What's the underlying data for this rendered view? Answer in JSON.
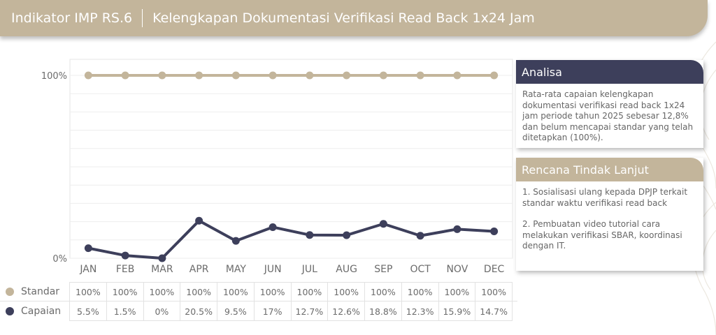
{
  "header": {
    "indicator": "Indikator IMP RS.6",
    "title": "Kelengkapan Dokumentasi Verifikasi Read Back 1x24 Jam"
  },
  "colors": {
    "standar": "#c3b59b",
    "capaian": "#3d3f5b",
    "header_bg": "#c3b59b",
    "analisa_bg": "#3d3f5b",
    "rtl_bg": "#c3b59b"
  },
  "chart_data": {
    "type": "line",
    "categories": [
      "JAN",
      "FEB",
      "MAR",
      "APR",
      "MAY",
      "JUN",
      "JUL",
      "AUG",
      "SEP",
      "OCT",
      "NOV",
      "DEC"
    ],
    "series": [
      {
        "name": "Standar",
        "values": [
          100,
          100,
          100,
          100,
          100,
          100,
          100,
          100,
          100,
          100,
          100,
          100
        ],
        "labels": [
          "100%",
          "100%",
          "100%",
          "100%",
          "100%",
          "100%",
          "100%",
          "100%",
          "100%",
          "100%",
          "100%",
          "100%"
        ]
      },
      {
        "name": "Capaian",
        "values": [
          5.5,
          1.5,
          0,
          20.5,
          9.5,
          17,
          12.7,
          12.6,
          18.8,
          12.3,
          15.9,
          14.7
        ],
        "labels": [
          "5.5%",
          "1.5%",
          "0%",
          "20.5%",
          "9.5%",
          "17%",
          "12.7%",
          "12.6%",
          "18.8%",
          "12.3%",
          "15.9%",
          "14.7%"
        ]
      }
    ],
    "yticks": [
      "0%",
      "100%"
    ],
    "ylim": [
      0,
      100
    ],
    "grid": true
  },
  "analisa": {
    "title": "Analisa",
    "text": "Rata-rata capaian kelengkapan dokumentasi verifikasi read back 1x24 jam periode tahun 2025 sebesar 12,8% dan belum mencapai standar yang telah ditetapkan (100%)."
  },
  "rtl": {
    "title": "Rencana Tindak Lanjut",
    "items": [
      "1. Sosialisasi ulang kepada DPJP terkait standar waktu verifikasi read back",
      "2. Pembuatan video tutorial cara melakukan verifikasi SBAR, koordinasi dengan IT."
    ]
  }
}
